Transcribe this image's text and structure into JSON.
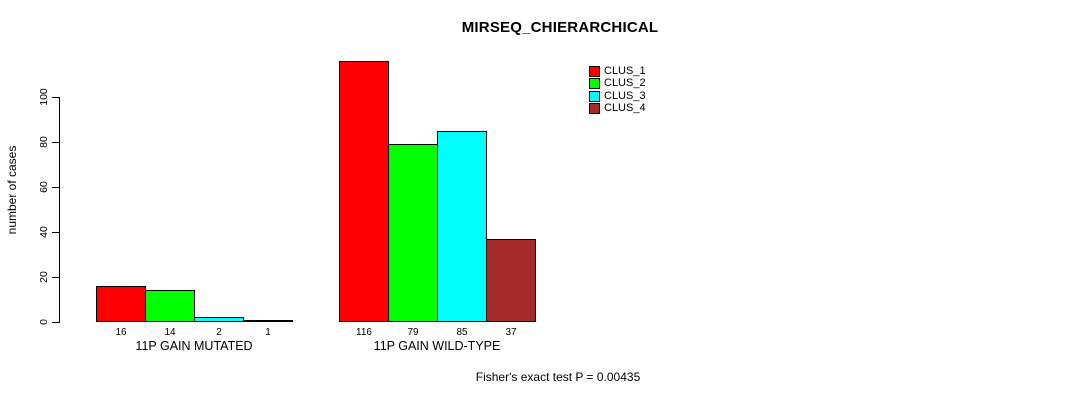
{
  "page": {
    "background_color": "#FFFFFF",
    "text_color": "#000000"
  },
  "chart_data": {
    "type": "bar",
    "title": "MIRSEQ_CHIERARCHICAL",
    "xlabel": "",
    "ylabel": "number of cases",
    "annotation": "Fisher's exact test P = 0.00435",
    "groups": [
      "11P GAIN MUTATED",
      "11P GAIN WILD-TYPE"
    ],
    "series": [
      {
        "name": "CLUS_1",
        "color": "#FF0000",
        "values": [
          16,
          116
        ]
      },
      {
        "name": "CLUS_2",
        "color": "#00FF00",
        "values": [
          14,
          79
        ]
      },
      {
        "name": "CLUS_3",
        "color": "#00FFFF",
        "values": [
          2,
          85
        ]
      },
      {
        "name": "CLUS_4",
        "color": "#A52A2A",
        "values": [
          1,
          37
        ]
      }
    ],
    "bar_value_labels": [
      [
        "16",
        "14",
        "2",
        "1"
      ],
      [
        "116",
        "79",
        "85",
        "37"
      ]
    ],
    "yticks": [
      0,
      20,
      40,
      60,
      80,
      100
    ],
    "ylim": [
      0,
      116
    ],
    "grid": false,
    "legend_position": "top-right",
    "bar_border_color": "#000000",
    "axis_color": "#000000"
  }
}
